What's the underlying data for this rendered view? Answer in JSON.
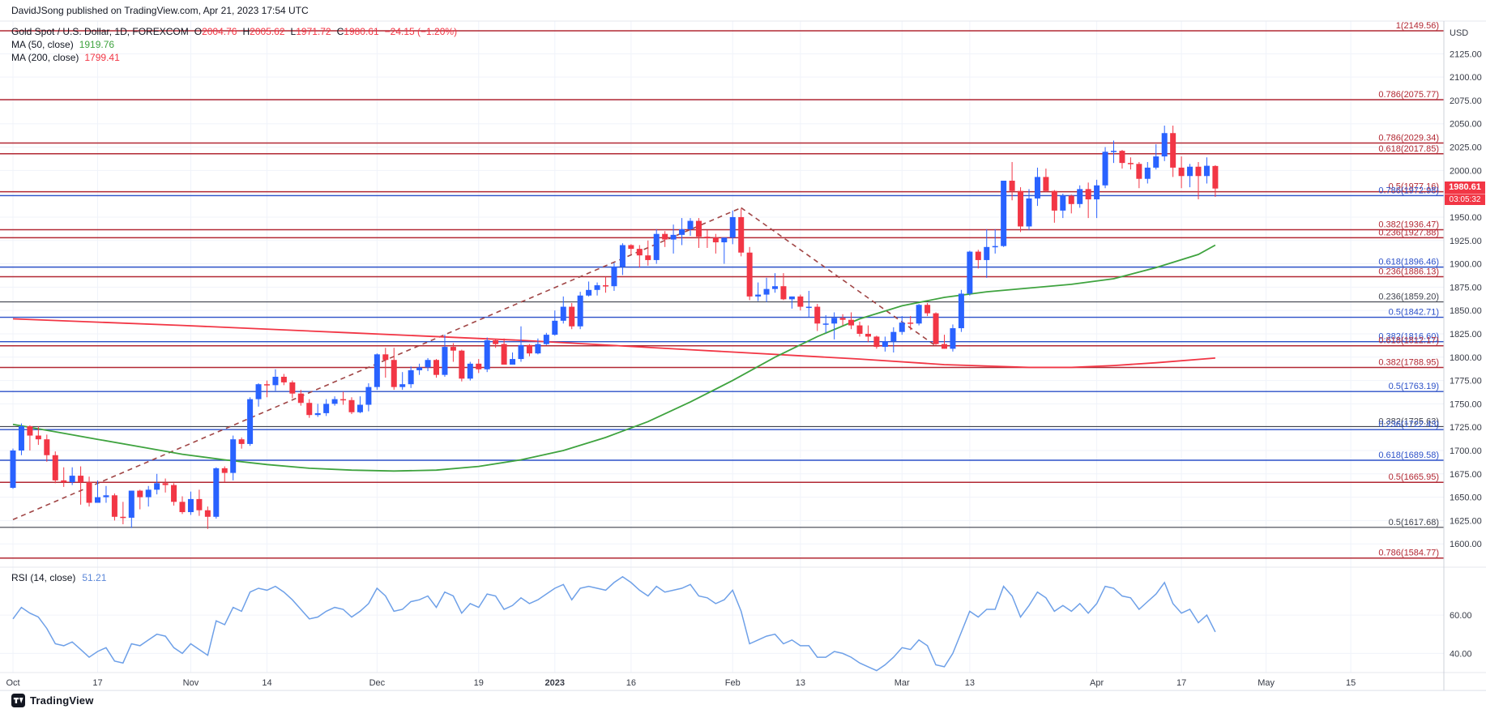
{
  "header": {
    "publish_line": "DavidJSong published on TradingView.com, Apr 21, 2023 17:54 UTC"
  },
  "legend": {
    "title": "Gold Spot / U.S. Dollar, 1D, FOREXCOM",
    "ohlc": [
      {
        "k": "O",
        "v": "2004.76"
      },
      {
        "k": "H",
        "v": "2005.62"
      },
      {
        "k": "L",
        "v": "1971.72"
      },
      {
        "k": "C",
        "v": "1980.61"
      }
    ],
    "change": "−24.15 (−1.20%)",
    "ma50_label": "MA (50, close)",
    "ma50_value": "1919.76",
    "ma200_label": "MA (200, close)",
    "ma200_value": "1799.41"
  },
  "rsi_legend": {
    "label": "RSI (14, close)",
    "value": "51.21"
  },
  "price_axis": {
    "currency": "USD",
    "ticks": [
      "2125.00",
      "2100.00",
      "2075.00",
      "2050.00",
      "2025.00",
      "2000.00",
      "1975.00",
      "1950.00",
      "1925.00",
      "1900.00",
      "1875.00",
      "1850.00",
      "1825.00",
      "1800.00",
      "1775.00",
      "1750.00",
      "1725.00",
      "1700.00",
      "1675.00",
      "1650.00",
      "1625.00",
      "1600.00"
    ],
    "last_price": "1980.61",
    "countdown": "03:05:32"
  },
  "rsi_axis": {
    "ticks": [
      "60.00",
      "40.00"
    ]
  },
  "time_axis": {
    "ticks": [
      {
        "label": "Oct",
        "index": 0
      },
      {
        "label": "17",
        "index": 10
      },
      {
        "label": "Nov",
        "index": 21
      },
      {
        "label": "14",
        "index": 30
      },
      {
        "label": "Dec",
        "index": 43
      },
      {
        "label": "19",
        "index": 55
      },
      {
        "label": "2023",
        "index": 64,
        "bold": true
      },
      {
        "label": "16",
        "index": 73
      },
      {
        "label": "Feb",
        "index": 85
      },
      {
        "label": "13",
        "index": 93
      },
      {
        "label": "Mar",
        "index": 105
      },
      {
        "label": "13",
        "index": 113
      },
      {
        "label": "Apr",
        "index": 128
      },
      {
        "label": "17",
        "index": 138
      },
      {
        "label": "May",
        "index": 148
      },
      {
        "label": "15",
        "index": 158
      }
    ]
  },
  "footer": {
    "brand": "TradingView"
  },
  "colors": {
    "up": "#2962ff",
    "down": "#f23645",
    "ma50": "#3fa33f",
    "ma200": "#f23645",
    "rsi": "#6ea0e8",
    "fib_red": "#b22833",
    "fib_blue": "#2b50c8",
    "fib_black": "#40434e",
    "trendline": "#a04545",
    "grid": "#f0f3fa",
    "axis_text": "#363a45",
    "separator": "#ccd0da",
    "badge_bg": "#f23645",
    "text": "#131722"
  },
  "chart_data": {
    "type": "candlestick",
    "symbol": "Gold Spot / U.S. Dollar",
    "timeframe": "1D",
    "exchange": "FOREXCOM",
    "price_axis_range": [
      1575,
      2160
    ],
    "rsi_axis_range": [
      30,
      85
    ],
    "fib_levels": [
      {
        "label": "1(2149.56)",
        "price": 2149.56,
        "group": "red"
      },
      {
        "label": "0.786(2075.77)",
        "price": 2075.77,
        "group": "red"
      },
      {
        "label": "0.786(2029.34)",
        "price": 2029.34,
        "group": "red"
      },
      {
        "label": "0.618(2017.85)",
        "price": 2017.85,
        "group": "red"
      },
      {
        "label": "0.5(1977.16)",
        "price": 1977.16,
        "group": "red"
      },
      {
        "label": "0.786(1972.98)",
        "price": 1972.98,
        "group": "blue"
      },
      {
        "label": "0.382(1936.47)",
        "price": 1936.47,
        "group": "red"
      },
      {
        "label": "0.236(1927.88)",
        "price": 1927.88,
        "group": "red"
      },
      {
        "label": "0.618(1896.46)",
        "price": 1896.46,
        "group": "blue"
      },
      {
        "label": "0.236(1886.13)",
        "price": 1886.13,
        "group": "red"
      },
      {
        "label": "0.236(1859.20)",
        "price": 1859.2,
        "group": "black"
      },
      {
        "label": "0.5(1842.71)",
        "price": 1842.71,
        "group": "blue"
      },
      {
        "label": "0.382(1816.60)",
        "price": 1816.6,
        "group": "blue"
      },
      {
        "label": "0.618(1812.17)",
        "price": 1812.17,
        "group": "red"
      },
      {
        "label": "0.382(1788.95)",
        "price": 1788.95,
        "group": "red"
      },
      {
        "label": "0.5(1763.19)",
        "price": 1763.19,
        "group": "blue"
      },
      {
        "label": "0.382(1725.63)",
        "price": 1725.63,
        "group": "black"
      },
      {
        "label": "0.236(1722.43)",
        "price": 1722.43,
        "group": "blue"
      },
      {
        "label": "0.618(1689.58)",
        "price": 1689.58,
        "group": "blue"
      },
      {
        "label": "0.5(1665.95)",
        "price": 1665.95,
        "group": "red"
      },
      {
        "label": "0.5(1617.68)",
        "price": 1617.68,
        "group": "black"
      },
      {
        "label": "0.786(1584.77)",
        "price": 1584.77,
        "group": "red"
      }
    ],
    "trendlines": [
      {
        "from": [
          0,
          1626
        ],
        "to": [
          86,
          1960
        ],
        "style": "dashed"
      },
      {
        "from": [
          86,
          1960
        ],
        "to": [
          109,
          1812
        ],
        "style": "dashed"
      }
    ],
    "ma50_points": [
      [
        0,
        1728
      ],
      [
        5,
        1720
      ],
      [
        10,
        1712
      ],
      [
        15,
        1704
      ],
      [
        20,
        1696
      ],
      [
        25,
        1690
      ],
      [
        30,
        1685
      ],
      [
        35,
        1681
      ],
      [
        40,
        1679
      ],
      [
        45,
        1678
      ],
      [
        50,
        1679
      ],
      [
        55,
        1683
      ],
      [
        60,
        1690
      ],
      [
        65,
        1700
      ],
      [
        70,
        1714
      ],
      [
        75,
        1731
      ],
      [
        80,
        1752
      ],
      [
        85,
        1775
      ],
      [
        90,
        1800
      ],
      [
        95,
        1822
      ],
      [
        100,
        1841
      ],
      [
        105,
        1855
      ],
      [
        110,
        1864
      ],
      [
        115,
        1870
      ],
      [
        120,
        1874
      ],
      [
        125,
        1878
      ],
      [
        130,
        1884
      ],
      [
        135,
        1896
      ],
      [
        140,
        1910
      ],
      [
        142,
        1920
      ]
    ],
    "ma200_points": [
      [
        0,
        1841
      ],
      [
        20,
        1834
      ],
      [
        40,
        1826
      ],
      [
        60,
        1818
      ],
      [
        80,
        1808
      ],
      [
        100,
        1798
      ],
      [
        110,
        1792
      ],
      [
        120,
        1789
      ],
      [
        125,
        1789
      ],
      [
        130,
        1791
      ],
      [
        135,
        1794
      ],
      [
        142,
        1799
      ]
    ],
    "candles": [
      [
        1660,
        1702,
        1659,
        1700
      ],
      [
        1700,
        1729,
        1695,
        1726
      ],
      [
        1726,
        1727,
        1700,
        1716
      ],
      [
        1716,
        1726,
        1706,
        1712
      ],
      [
        1712,
        1717,
        1688,
        1695
      ],
      [
        1695,
        1699,
        1665,
        1668
      ],
      [
        1668,
        1682,
        1661,
        1666
      ],
      [
        1666,
        1682,
        1663,
        1673
      ],
      [
        1673,
        1683,
        1642,
        1666
      ],
      [
        1666,
        1672,
        1640,
        1644
      ],
      [
        1644,
        1668,
        1644,
        1650
      ],
      [
        1650,
        1662,
        1644,
        1652
      ],
      [
        1652,
        1654,
        1625,
        1629
      ],
      [
        1629,
        1645,
        1621,
        1628
      ],
      [
        1628,
        1657,
        1617,
        1657
      ],
      [
        1657,
        1658,
        1637,
        1650
      ],
      [
        1650,
        1662,
        1640,
        1658
      ],
      [
        1658,
        1675,
        1653,
        1665
      ],
      [
        1665,
        1670,
        1655,
        1663
      ],
      [
        1663,
        1665,
        1641,
        1645
      ],
      [
        1645,
        1651,
        1632,
        1634
      ],
      [
        1634,
        1656,
        1631,
        1648
      ],
      [
        1648,
        1658,
        1630,
        1636
      ],
      [
        1636,
        1640,
        1616,
        1629
      ],
      [
        1629,
        1682,
        1627,
        1681
      ],
      [
        1681,
        1683,
        1666,
        1676
      ],
      [
        1676,
        1716,
        1668,
        1712
      ],
      [
        1712,
        1714,
        1702,
        1707
      ],
      [
        1707,
        1757,
        1705,
        1755
      ],
      [
        1755,
        1772,
        1747,
        1771
      ],
      [
        1771,
        1775,
        1757,
        1770
      ],
      [
        1770,
        1787,
        1764,
        1779
      ],
      [
        1779,
        1782,
        1770,
        1773
      ],
      [
        1773,
        1775,
        1756,
        1761
      ],
      [
        1761,
        1765,
        1748,
        1751
      ],
      [
        1751,
        1755,
        1735,
        1738
      ],
      [
        1738,
        1750,
        1736,
        1740
      ],
      [
        1740,
        1755,
        1737,
        1750
      ],
      [
        1750,
        1758,
        1748,
        1755
      ],
      [
        1755,
        1763,
        1749,
        1754
      ],
      [
        1754,
        1757,
        1739,
        1741
      ],
      [
        1741,
        1758,
        1740,
        1749
      ],
      [
        1749,
        1772,
        1742,
        1768
      ],
      [
        1768,
        1804,
        1765,
        1803
      ],
      [
        1803,
        1810,
        1778,
        1797
      ],
      [
        1797,
        1810,
        1765,
        1768
      ],
      [
        1768,
        1784,
        1765,
        1771
      ],
      [
        1771,
        1790,
        1767,
        1786
      ],
      [
        1786,
        1793,
        1781,
        1789
      ],
      [
        1789,
        1799,
        1785,
        1797
      ],
      [
        1797,
        1798,
        1778,
        1781
      ],
      [
        1781,
        1824,
        1779,
        1811
      ],
      [
        1811,
        1815,
        1795,
        1807
      ],
      [
        1807,
        1808,
        1774,
        1777
      ],
      [
        1777,
        1795,
        1775,
        1793
      ],
      [
        1793,
        1798,
        1783,
        1787
      ],
      [
        1787,
        1821,
        1784,
        1818
      ],
      [
        1818,
        1819,
        1810,
        1814
      ],
      [
        1814,
        1820,
        1792,
        1792
      ],
      [
        1792,
        1805,
        1792,
        1798
      ],
      [
        1798,
        1833,
        1795,
        1813
      ],
      [
        1813,
        1814,
        1801,
        1804
      ],
      [
        1804,
        1820,
        1803,
        1814
      ],
      [
        1814,
        1826,
        1813,
        1824
      ],
      [
        1824,
        1850,
        1823,
        1839
      ],
      [
        1839,
        1865,
        1836,
        1854
      ],
      [
        1854,
        1858,
        1830,
        1833
      ],
      [
        1833,
        1870,
        1830,
        1866
      ],
      [
        1866,
        1881,
        1865,
        1872
      ],
      [
        1872,
        1880,
        1866,
        1877
      ],
      [
        1877,
        1886,
        1869,
        1876
      ],
      [
        1876,
        1901,
        1871,
        1897
      ],
      [
        1897,
        1922,
        1888,
        1920
      ],
      [
        1920,
        1921,
        1910,
        1916
      ],
      [
        1916,
        1920,
        1896,
        1909
      ],
      [
        1909,
        1925,
        1898,
        1904
      ],
      [
        1904,
        1937,
        1900,
        1932
      ],
      [
        1932,
        1935,
        1918,
        1926
      ],
      [
        1926,
        1942,
        1911,
        1931
      ],
      [
        1931,
        1949,
        1920,
        1937
      ],
      [
        1937,
        1949,
        1930,
        1946
      ],
      [
        1946,
        1949,
        1917,
        1929
      ],
      [
        1929,
        1936,
        1917,
        1928
      ],
      [
        1928,
        1932,
        1911,
        1923
      ],
      [
        1923,
        1928,
        1900,
        1928
      ],
      [
        1928,
        1957,
        1921,
        1950
      ],
      [
        1950,
        1959,
        1908,
        1912
      ],
      [
        1912,
        1918,
        1861,
        1865
      ],
      [
        1865,
        1880,
        1860,
        1867
      ],
      [
        1867,
        1885,
        1859,
        1873
      ],
      [
        1873,
        1890,
        1869,
        1876
      ],
      [
        1876,
        1890,
        1861,
        1862
      ],
      [
        1862,
        1865,
        1852,
        1865
      ],
      [
        1865,
        1867,
        1850,
        1854
      ],
      [
        1854,
        1871,
        1843,
        1854
      ],
      [
        1854,
        1857,
        1828,
        1836
      ],
      [
        1836,
        1845,
        1826,
        1836
      ],
      [
        1836,
        1848,
        1819,
        1842
      ],
      [
        1842,
        1846,
        1834,
        1840
      ],
      [
        1840,
        1848,
        1830,
        1834
      ],
      [
        1834,
        1838,
        1822,
        1825
      ],
      [
        1825,
        1834,
        1816,
        1822
      ],
      [
        1822,
        1823,
        1809,
        1811
      ],
      [
        1811,
        1822,
        1806,
        1817
      ],
      [
        1817,
        1832,
        1805,
        1827
      ],
      [
        1827,
        1844,
        1824,
        1837
      ],
      [
        1837,
        1844,
        1829,
        1836
      ],
      [
        1836,
        1857,
        1834,
        1856
      ],
      [
        1856,
        1858,
        1844,
        1847
      ],
      [
        1847,
        1848,
        1813,
        1814
      ],
      [
        1814,
        1824,
        1809,
        1809
      ],
      [
        1809,
        1835,
        1806,
        1831
      ],
      [
        1831,
        1872,
        1827,
        1868
      ],
      [
        1868,
        1914,
        1866,
        1913
      ],
      [
        1913,
        1915,
        1895,
        1904
      ],
      [
        1904,
        1937,
        1885,
        1918
      ],
      [
        1918,
        1937,
        1911,
        1919
      ],
      [
        1919,
        1989,
        1918,
        1989
      ],
      [
        1989,
        2009,
        1968,
        1978
      ],
      [
        1978,
        1982,
        1934,
        1940
      ],
      [
        1940,
        1980,
        1936,
        1970
      ],
      [
        1970,
        2003,
        1962,
        1993
      ],
      [
        1993,
        2002,
        1977,
        1978
      ],
      [
        1978,
        1979,
        1944,
        1957
      ],
      [
        1957,
        1975,
        1949,
        1973
      ],
      [
        1973,
        1974,
        1954,
        1964
      ],
      [
        1964,
        1984,
        1960,
        1980
      ],
      [
        1980,
        1987,
        1949,
        1969
      ],
      [
        1969,
        1990,
        1949,
        1984
      ],
      [
        1984,
        2025,
        1981,
        2020
      ],
      [
        2020,
        2032,
        2008,
        2021
      ],
      [
        2021,
        2022,
        2002,
        2008
      ],
      [
        2008,
        2014,
        2001,
        2007
      ],
      [
        2007,
        2009,
        1981,
        1991
      ],
      [
        1991,
        2009,
        1986,
        2003
      ],
      [
        2003,
        2028,
        2001,
        2015
      ],
      [
        2015,
        2048,
        2010,
        2040
      ],
      [
        2040,
        2048,
        1993,
        2003
      ],
      [
        2003,
        2015,
        1981,
        1994
      ],
      [
        1994,
        2007,
        1982,
        2004
      ],
      [
        2004,
        2009,
        1969,
        1994
      ],
      [
        1994,
        2014,
        1986,
        2005
      ],
      [
        2004.76,
        2005.62,
        1971.72,
        1980.61
      ]
    ],
    "rsi_values": [
      58,
      64,
      61,
      59,
      53,
      45,
      44,
      46,
      42,
      38,
      41,
      43,
      36,
      35,
      45,
      44,
      47,
      50,
      49,
      43,
      40,
      45,
      42,
      39,
      57,
      55,
      64,
      62,
      72,
      74,
      73,
      75,
      72,
      68,
      63,
      58,
      59,
      62,
      64,
      63,
      59,
      62,
      66,
      74,
      70,
      62,
      63,
      67,
      68,
      70,
      64,
      72,
      70,
      61,
      66,
      64,
      71,
      70,
      63,
      65,
      69,
      66,
      68,
      71,
      74,
      76,
      68,
      74,
      75,
      74,
      73,
      77,
      80,
      77,
      73,
      70,
      75,
      72,
      73,
      74,
      76,
      70,
      69,
      66,
      68,
      73,
      62,
      45,
      47,
      49,
      50,
      45,
      47,
      44,
      44,
      38,
      38,
      41,
      40,
      38,
      35,
      33,
      31,
      34,
      38,
      43,
      42,
      47,
      44,
      34,
      33,
      40,
      51,
      62,
      59,
      63,
      63,
      75,
      70,
      59,
      65,
      72,
      69,
      62,
      65,
      62,
      66,
      61,
      66,
      75,
      74,
      70,
      69,
      63,
      67,
      71,
      77,
      66,
      61,
      63,
      56,
      60,
      51.21
    ]
  }
}
